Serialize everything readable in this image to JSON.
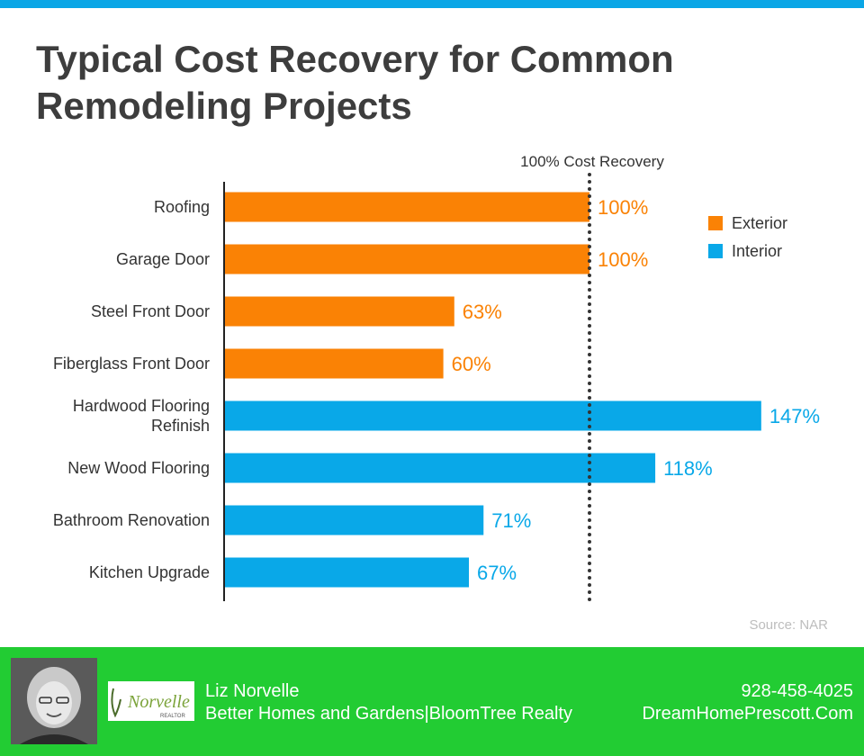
{
  "title": "Typical Cost Recovery for Common Remodeling Projects",
  "chart_data": {
    "type": "bar",
    "orientation": "horizontal",
    "categories": [
      "Roofing",
      "Garage Door",
      "Steel Front Door",
      "Fiberglass Front Door",
      "Hardwood Flooring Refinish",
      "New Wood Flooring",
      "Bathroom Renovation",
      "Kitchen Upgrade"
    ],
    "values": [
      100,
      100,
      63,
      60,
      147,
      118,
      71,
      67
    ],
    "value_labels": [
      "100%",
      "100%",
      "63%",
      "60%",
      "147%",
      "118%",
      "71%",
      "67%"
    ],
    "groups": [
      "Exterior",
      "Exterior",
      "Exterior",
      "Exterior",
      "Interior",
      "Interior",
      "Interior",
      "Interior"
    ],
    "legend": [
      {
        "name": "Exterior",
        "color": "#fa8205"
      },
      {
        "name": "Interior",
        "color": "#09a8e8"
      }
    ],
    "legend_position": "top-right",
    "reference_line": {
      "value": 100,
      "label": "100% Cost Recovery",
      "style": "dotted"
    },
    "grid": false,
    "source": "Source: NAR"
  },
  "footer": {
    "agent_name": "Liz Norvelle",
    "company": "Better Homes and Gardens|BloomTree Realty",
    "phone": "928-458-4025",
    "website": "DreamHomePrescott.Com",
    "logo_text": "Norvelle",
    "logo_sub": "REALTOR",
    "background_color": "#22cc33"
  }
}
